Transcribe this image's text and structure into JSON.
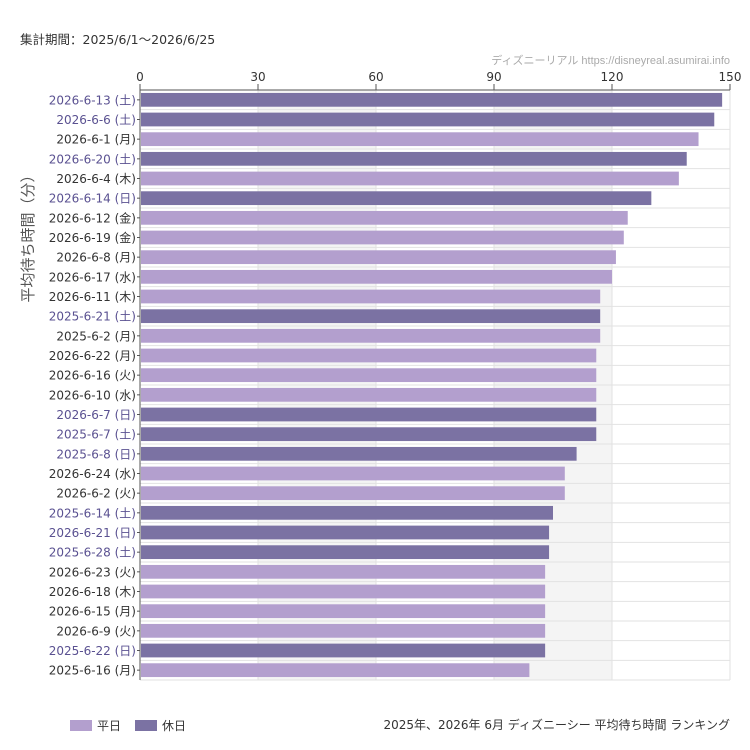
{
  "header": {
    "period": "集計期間：2025/6/1〜2026/6/25",
    "credit": "ディズニーリアル https://disneyreal.asumirai.info"
  },
  "footer": {
    "caption": "2025年、2026年 6月 ディズニーシー 平均待ち時間 ランキング"
  },
  "colors": {
    "weekday": "#b39fce",
    "holiday": "#7b72a3",
    "holiday_label": "#5a5191",
    "weekday_label": "#333333",
    "grid": "#e2e2e2",
    "band": "#f4f4f4"
  },
  "chart_data": {
    "type": "bar",
    "orientation": "horizontal",
    "ylabel": "平均待ち時間（分）",
    "xlim": [
      0,
      150
    ],
    "xticks": [
      0,
      30,
      60,
      90,
      120,
      150
    ],
    "legend": [
      {
        "name": "平日",
        "key": "weekday"
      },
      {
        "name": "休日",
        "key": "holiday"
      }
    ],
    "legend_position": "bottom-left",
    "bars": [
      {
        "label": "2026-6-13 (土)",
        "value": 148,
        "holiday": true
      },
      {
        "label": "2026-6-6 (土)",
        "value": 146,
        "holiday": true
      },
      {
        "label": "2026-6-1 (月)",
        "value": 142,
        "holiday": false
      },
      {
        "label": "2026-6-20 (土)",
        "value": 139,
        "holiday": true
      },
      {
        "label": "2026-6-4 (木)",
        "value": 137,
        "holiday": false
      },
      {
        "label": "2026-6-14 (日)",
        "value": 130,
        "holiday": true
      },
      {
        "label": "2026-6-12 (金)",
        "value": 124,
        "holiday": false
      },
      {
        "label": "2026-6-19 (金)",
        "value": 123,
        "holiday": false
      },
      {
        "label": "2026-6-8 (月)",
        "value": 121,
        "holiday": false
      },
      {
        "label": "2026-6-17 (水)",
        "value": 120,
        "holiday": false
      },
      {
        "label": "2026-6-11 (木)",
        "value": 117,
        "holiday": false
      },
      {
        "label": "2025-6-21 (土)",
        "value": 117,
        "holiday": true
      },
      {
        "label": "2025-6-2 (月)",
        "value": 117,
        "holiday": false
      },
      {
        "label": "2026-6-22 (月)",
        "value": 116,
        "holiday": false
      },
      {
        "label": "2026-6-16 (火)",
        "value": 116,
        "holiday": false
      },
      {
        "label": "2026-6-10 (水)",
        "value": 116,
        "holiday": false
      },
      {
        "label": "2026-6-7 (日)",
        "value": 116,
        "holiday": true
      },
      {
        "label": "2025-6-7 (土)",
        "value": 116,
        "holiday": true
      },
      {
        "label": "2025-6-8 (日)",
        "value": 111,
        "holiday": true
      },
      {
        "label": "2026-6-24 (水)",
        "value": 108,
        "holiday": false
      },
      {
        "label": "2026-6-2 (火)",
        "value": 108,
        "holiday": false
      },
      {
        "label": "2025-6-14 (土)",
        "value": 105,
        "holiday": true
      },
      {
        "label": "2026-6-21 (日)",
        "value": 104,
        "holiday": true
      },
      {
        "label": "2025-6-28 (土)",
        "value": 104,
        "holiday": true
      },
      {
        "label": "2026-6-23 (火)",
        "value": 103,
        "holiday": false
      },
      {
        "label": "2026-6-18 (木)",
        "value": 103,
        "holiday": false
      },
      {
        "label": "2026-6-15 (月)",
        "value": 103,
        "holiday": false
      },
      {
        "label": "2026-6-9 (火)",
        "value": 103,
        "holiday": false
      },
      {
        "label": "2025-6-22 (日)",
        "value": 103,
        "holiday": true
      },
      {
        "label": "2025-6-16 (月)",
        "value": 99,
        "holiday": false
      }
    ]
  }
}
